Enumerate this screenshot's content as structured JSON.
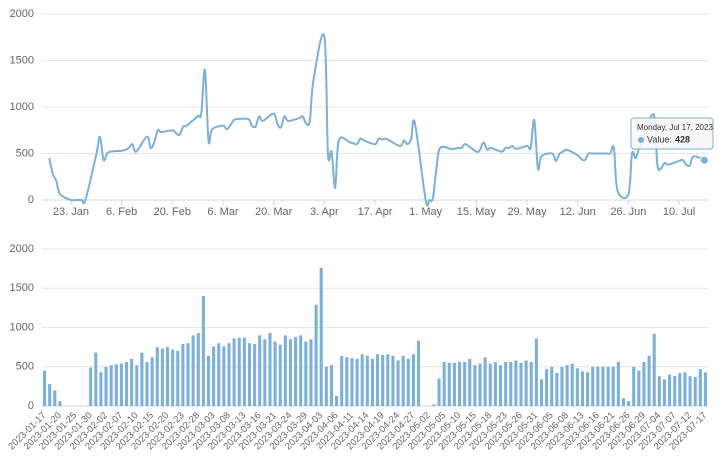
{
  "chart_data": [
    {
      "type": "line",
      "x": [
        "2023-01-17",
        "2023-01-18",
        "2023-01-19",
        "2023-01-20",
        "2023-01-23",
        "2023-01-24",
        "2023-01-25",
        "2023-01-26",
        "2023-01-27",
        "2023-01-30",
        "2023-01-31",
        "2023-02-01",
        "2023-02-02",
        "2023-02-03",
        "2023-02-06",
        "2023-02-07",
        "2023-02-08",
        "2023-02-09",
        "2023-02-10",
        "2023-02-13",
        "2023-02-14",
        "2023-02-15",
        "2023-02-16",
        "2023-02-17",
        "2023-02-20",
        "2023-02-21",
        "2023-02-22",
        "2023-02-23",
        "2023-02-24",
        "2023-02-27",
        "2023-02-28",
        "2023-03-01",
        "2023-03-02",
        "2023-03-03",
        "2023-03-06",
        "2023-03-07",
        "2023-03-08",
        "2023-03-09",
        "2023-03-10",
        "2023-03-13",
        "2023-03-14",
        "2023-03-15",
        "2023-03-16",
        "2023-03-17",
        "2023-03-20",
        "2023-03-21",
        "2023-03-22",
        "2023-03-23",
        "2023-03-24",
        "2023-03-27",
        "2023-03-28",
        "2023-03-29",
        "2023-03-30",
        "2023-03-31",
        "2023-04-03",
        "2023-04-04",
        "2023-04-05",
        "2023-04-06",
        "2023-04-07",
        "2023-04-10",
        "2023-04-11",
        "2023-04-12",
        "2023-04-13",
        "2023-04-14",
        "2023-04-17",
        "2023-04-18",
        "2023-04-19",
        "2023-04-20",
        "2023-04-21",
        "2023-04-24",
        "2023-04-25",
        "2023-04-26",
        "2023-04-27",
        "2023-04-28",
        "2023-05-01",
        "2023-05-02",
        "2023-05-03",
        "2023-05-04",
        "2023-05-05",
        "2023-05-08",
        "2023-05-09",
        "2023-05-10",
        "2023-05-11",
        "2023-05-12",
        "2023-05-15",
        "2023-05-16",
        "2023-05-17",
        "2023-05-18",
        "2023-05-19",
        "2023-05-22",
        "2023-05-23",
        "2023-05-24",
        "2023-05-25",
        "2023-05-26",
        "2023-05-29",
        "2023-05-30",
        "2023-05-31",
        "2023-06-01",
        "2023-06-02",
        "2023-06-05",
        "2023-06-06",
        "2023-06-07",
        "2023-06-08",
        "2023-06-09",
        "2023-06-12",
        "2023-06-13",
        "2023-06-14",
        "2023-06-15",
        "2023-06-16",
        "2023-06-19",
        "2023-06-20",
        "2023-06-21",
        "2023-06-22",
        "2023-06-23",
        "2023-06-26",
        "2023-06-27",
        "2023-06-28",
        "2023-06-29",
        "2023-06-30",
        "2023-07-03",
        "2023-07-04",
        "2023-07-05",
        "2023-07-06",
        "2023-07-07",
        "2023-07-10",
        "2023-07-11",
        "2023-07-12",
        "2023-07-13",
        "2023-07-14",
        "2023-07-17"
      ],
      "values": [
        450,
        280,
        200,
        60,
        0,
        0,
        0,
        0,
        0,
        490,
        680,
        430,
        500,
        520,
        530,
        540,
        560,
        600,
        520,
        680,
        560,
        620,
        750,
        730,
        750,
        720,
        700,
        790,
        800,
        900,
        930,
        1400,
        640,
        760,
        800,
        760,
        800,
        860,
        870,
        870,
        800,
        790,
        900,
        850,
        930,
        820,
        780,
        900,
        850,
        880,
        900,
        820,
        850,
        1290,
        1760,
        500,
        520,
        130,
        640,
        620,
        610,
        600,
        660,
        640,
        600,
        660,
        650,
        660,
        640,
        580,
        640,
        600,
        660,
        830,
        0,
        0,
        20,
        350,
        560,
        550,
        550,
        560,
        560,
        600,
        520,
        540,
        620,
        540,
        560,
        520,
        560,
        560,
        580,
        550,
        580,
        560,
        860,
        340,
        470,
        500,
        420,
        500,
        520,
        540,
        480,
        440,
        430,
        500,
        500,
        500,
        500,
        500,
        560,
        100,
        60,
        500,
        450,
        560,
        640,
        920,
        380,
        340,
        400,
        380,
        420,
        430,
        380,
        370,
        470,
        428
      ],
      "color": "#7cb0d6",
      "xlim": [
        "2023-01-15",
        "2023-07-18"
      ],
      "xticks": [
        {
          "value": "2023-01-23",
          "label": "23. Jan"
        },
        {
          "value": "2023-02-06",
          "label": "6. Feb"
        },
        {
          "value": "2023-02-20",
          "label": "20. Feb"
        },
        {
          "value": "2023-03-06",
          "label": "6. Mar"
        },
        {
          "value": "2023-03-20",
          "label": "20. Mar"
        },
        {
          "value": "2023-04-03",
          "label": "3. Apr"
        },
        {
          "value": "2023-04-17",
          "label": "17. Apr"
        },
        {
          "value": "2023-05-01",
          "label": "1. May"
        },
        {
          "value": "2023-05-15",
          "label": "15. May"
        },
        {
          "value": "2023-05-29",
          "label": "29. May"
        },
        {
          "value": "2023-06-12",
          "label": "12. Jun"
        },
        {
          "value": "2023-06-26",
          "label": "26. Jun"
        },
        {
          "value": "2023-07-10",
          "label": "10. Jul"
        }
      ],
      "ylim": [
        0,
        2000
      ],
      "yticks": [
        0,
        500,
        1000,
        1500,
        2000
      ],
      "grid": true,
      "annotations": {
        "tooltip_title": "Monday, Jul 17, 2023",
        "tooltip_label": "Value:"
      }
    },
    {
      "type": "bar",
      "categories": [
        "2023-01-17",
        null,
        null,
        "2023-01-20",
        null,
        null,
        "2023-01-25",
        null,
        null,
        "2023-01-30",
        null,
        null,
        "2023-02-02",
        null,
        null,
        "2023-02-07",
        null,
        null,
        "2023-02-10",
        null,
        null,
        "2023-02-15",
        null,
        null,
        "2023-02-20",
        null,
        null,
        "2023-02-23",
        null,
        null,
        "2023-02-28",
        null,
        null,
        "2023-03-03",
        null,
        null,
        "2023-03-08",
        null,
        null,
        "2023-03-13",
        null,
        null,
        "2023-03-16",
        null,
        null,
        "2023-03-21",
        null,
        null,
        "2023-03-24",
        null,
        null,
        "2023-03-29",
        null,
        null,
        "2023-04-03",
        null,
        null,
        "2023-04-06",
        null,
        null,
        "2023-04-11",
        null,
        null,
        "2023-04-14",
        null,
        null,
        "2023-04-19",
        null,
        null,
        "2023-04-24",
        null,
        null,
        "2023-04-27",
        null,
        null,
        "2023-05-02",
        null,
        null,
        "2023-05-05",
        null,
        null,
        "2023-05-10",
        null,
        null,
        "2023-05-15",
        null,
        null,
        "2023-05-18",
        null,
        null,
        "2023-05-23",
        null,
        null,
        "2023-05-26",
        null,
        null,
        "2023-05-31",
        null,
        null,
        "2023-06-05",
        null,
        null,
        "2023-06-08",
        null,
        null,
        "2023-06-13",
        null,
        null,
        "2023-06-16",
        null,
        null,
        "2023-06-21",
        null,
        null,
        "2023-06-26",
        null,
        null,
        "2023-06-29",
        null,
        null,
        "2023-07-04",
        null,
        null,
        "2023-07-07",
        null,
        null,
        "2023-07-12",
        null,
        null,
        "2023-07-17"
      ],
      "values": [
        450,
        280,
        200,
        60,
        0,
        0,
        0,
        0,
        0,
        490,
        680,
        430,
        500,
        520,
        530,
        540,
        560,
        600,
        520,
        680,
        560,
        620,
        750,
        730,
        750,
        720,
        700,
        790,
        800,
        900,
        930,
        1400,
        640,
        760,
        800,
        760,
        800,
        860,
        870,
        870,
        800,
        790,
        900,
        850,
        930,
        820,
        780,
        900,
        850,
        880,
        900,
        820,
        850,
        1290,
        1760,
        500,
        520,
        130,
        640,
        620,
        610,
        600,
        660,
        640,
        600,
        660,
        650,
        660,
        640,
        580,
        640,
        600,
        660,
        830,
        0,
        0,
        20,
        350,
        560,
        550,
        550,
        560,
        560,
        600,
        520,
        540,
        620,
        540,
        560,
        520,
        560,
        560,
        580,
        550,
        580,
        560,
        860,
        340,
        470,
        500,
        420,
        500,
        520,
        540,
        480,
        440,
        430,
        500,
        500,
        500,
        500,
        500,
        560,
        100,
        60,
        500,
        450,
        560,
        640,
        920,
        380,
        340,
        400,
        380,
        420,
        430,
        380,
        370,
        470,
        428
      ],
      "color": "#7cb0d6",
      "ylim": [
        0,
        2000
      ],
      "yticks": [
        0,
        500,
        1000,
        1500,
        2000
      ],
      "grid": true
    }
  ]
}
